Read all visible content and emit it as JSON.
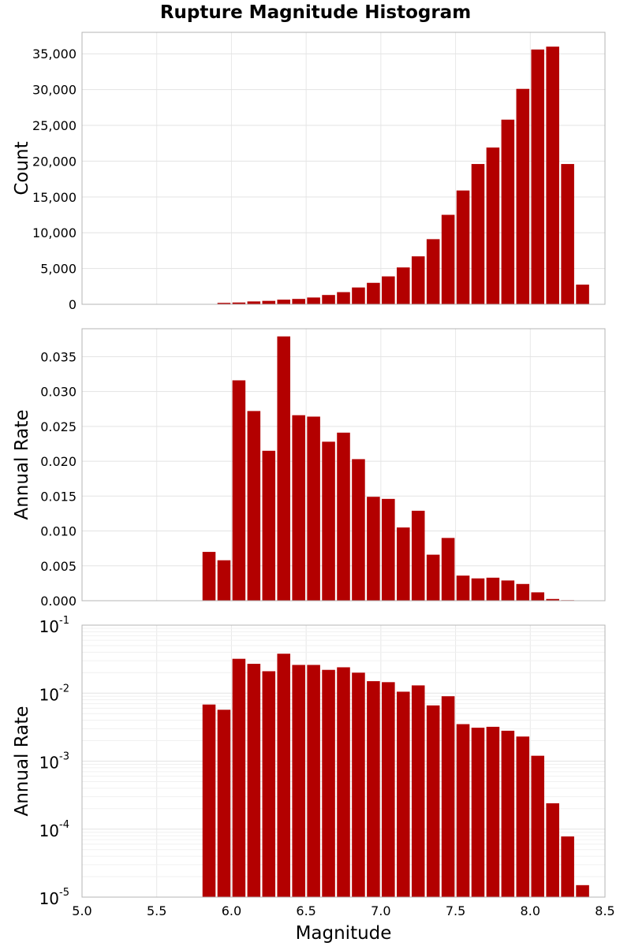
{
  "chart_data": [
    {
      "type": "bar",
      "title": "Rupture Magnitude Histogram",
      "ylabel": "Count",
      "xlabel": "",
      "xlim": [
        5.0,
        8.5
      ],
      "ylim": [
        0,
        38000
      ],
      "y_scale": "linear",
      "grid": true,
      "bar_color": "#b30000",
      "x_ticks": [
        5.0,
        5.5,
        6.0,
        6.5,
        7.0,
        7.5,
        8.0,
        8.5
      ],
      "x_tick_labels_shown": false,
      "y_ticks": [
        0,
        5000,
        10000,
        15000,
        20000,
        25000,
        30000,
        35000
      ],
      "y_tick_labels": [
        "0",
        "5,000",
        "10,000",
        "15,000",
        "20,000",
        "25,000",
        "30,000",
        "35,000"
      ],
      "bin_width": 0.1,
      "x": [
        5.85,
        5.95,
        6.05,
        6.15,
        6.25,
        6.35,
        6.45,
        6.55,
        6.65,
        6.75,
        6.85,
        6.95,
        7.05,
        7.15,
        7.25,
        7.35,
        7.45,
        7.55,
        7.65,
        7.75,
        7.85,
        7.95,
        8.05,
        8.15,
        8.25,
        8.35
      ],
      "values": [
        50,
        200,
        250,
        400,
        480,
        650,
        750,
        950,
        1300,
        1700,
        2350,
        3000,
        3900,
        5150,
        6700,
        9100,
        12500,
        15900,
        19600,
        21900,
        25800,
        30100,
        35600,
        36000,
        19600,
        2750
      ]
    },
    {
      "type": "bar",
      "title": "",
      "ylabel": "Annual Rate",
      "xlabel": "",
      "xlim": [
        5.0,
        8.5
      ],
      "ylim": [
        0,
        0.039
      ],
      "y_scale": "linear",
      "grid": true,
      "bar_color": "#b30000",
      "x_ticks": [
        5.0,
        5.5,
        6.0,
        6.5,
        7.0,
        7.5,
        8.0,
        8.5
      ],
      "x_tick_labels_shown": false,
      "y_ticks": [
        0,
        0.005,
        0.01,
        0.015,
        0.02,
        0.025,
        0.03,
        0.035
      ],
      "y_tick_labels": [
        "0.000",
        "0.005",
        "0.010",
        "0.015",
        "0.020",
        "0.025",
        "0.030",
        "0.035"
      ],
      "bin_width": 0.1,
      "x": [
        5.85,
        5.95,
        6.05,
        6.15,
        6.25,
        6.35,
        6.45,
        6.55,
        6.65,
        6.75,
        6.85,
        6.95,
        7.05,
        7.15,
        7.25,
        7.35,
        7.45,
        7.55,
        7.65,
        7.75,
        7.85,
        7.95,
        8.05,
        8.15,
        8.25,
        8.35
      ],
      "values": [
        0.007,
        0.0058,
        0.0316,
        0.0272,
        0.0215,
        0.0379,
        0.0266,
        0.0264,
        0.0228,
        0.0241,
        0.0203,
        0.0149,
        0.0146,
        0.0105,
        0.0129,
        0.0066,
        0.009,
        0.0036,
        0.0032,
        0.0033,
        0.0029,
        0.0024,
        0.0012,
        0.00025,
        8e-05,
        1.5e-05
      ]
    },
    {
      "type": "bar",
      "title": "",
      "ylabel": "Annual Rate",
      "xlabel": "Magnitude",
      "xlim": [
        5.0,
        8.5
      ],
      "ylim": [
        1e-05,
        0.1
      ],
      "y_scale": "log",
      "grid": true,
      "bar_color": "#b30000",
      "x_ticks": [
        5.0,
        5.5,
        6.0,
        6.5,
        7.0,
        7.5,
        8.0,
        8.5
      ],
      "x_tick_labels": [
        "5.0",
        "5.5",
        "6.0",
        "6.5",
        "7.0",
        "7.5",
        "8.0",
        "8.5"
      ],
      "x_tick_labels_shown": true,
      "y_ticks": [
        1e-05,
        0.0001,
        0.001,
        0.01,
        0.1
      ],
      "y_tick_base": "10",
      "y_tick_exponents": [
        "-5",
        "-4",
        "-3",
        "-2",
        "-1"
      ],
      "bin_width": 0.1,
      "x": [
        5.85,
        5.95,
        6.05,
        6.15,
        6.25,
        6.35,
        6.45,
        6.55,
        6.65,
        6.75,
        6.85,
        6.95,
        7.05,
        7.15,
        7.25,
        7.35,
        7.45,
        7.55,
        7.65,
        7.75,
        7.85,
        7.95,
        8.05,
        8.15,
        8.25,
        8.35
      ],
      "values": [
        0.0068,
        0.0057,
        0.032,
        0.027,
        0.021,
        0.038,
        0.026,
        0.026,
        0.022,
        0.024,
        0.02,
        0.015,
        0.0145,
        0.0105,
        0.013,
        0.0066,
        0.009,
        0.0035,
        0.0031,
        0.0032,
        0.0028,
        0.0023,
        0.0012,
        0.00024,
        7.8e-05,
        1.5e-05
      ]
    }
  ]
}
